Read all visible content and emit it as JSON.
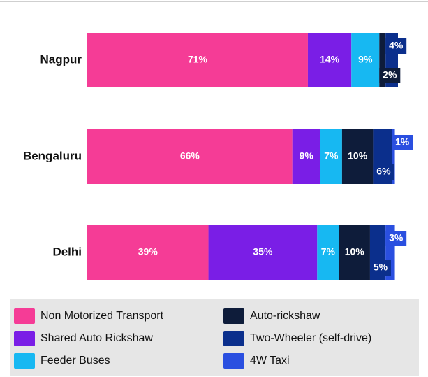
{
  "chart_data": {
    "type": "stacked-bar-horizontal",
    "categories": [
      "Nagpur",
      "Bengaluru",
      "Delhi"
    ],
    "series": [
      {
        "name": "Non Motorized Transport",
        "color": "#f53c96",
        "values": [
          71,
          66,
          39
        ],
        "value_labels": [
          "71%",
          "66%",
          "39%"
        ]
      },
      {
        "name": "Shared Auto Rickshaw",
        "color": "#7a1ee6",
        "values": [
          14,
          9,
          35
        ],
        "value_labels": [
          "14%",
          "9%",
          "35%"
        ]
      },
      {
        "name": "Feeder Buses",
        "color": "#17b8f2",
        "values": [
          9,
          7,
          7
        ],
        "value_labels": [
          "9%",
          "7%",
          "7%"
        ]
      },
      {
        "name": "Auto-rickshaw",
        "color": "#0e1c3a",
        "values": [
          2,
          10,
          10
        ],
        "value_labels": [
          "2%",
          "10%",
          "10%"
        ]
      },
      {
        "name": "Two-Wheeler (self-drive)",
        "color": "#0b2f8c",
        "values": [
          4,
          6,
          5
        ],
        "value_labels": [
          "4%",
          "6%",
          "5%"
        ]
      },
      {
        "name": "4W Taxi",
        "color": "#2a4fe0",
        "values": [
          null,
          1,
          3
        ],
        "value_labels": [
          null,
          "1%",
          "3%"
        ]
      }
    ]
  }
}
